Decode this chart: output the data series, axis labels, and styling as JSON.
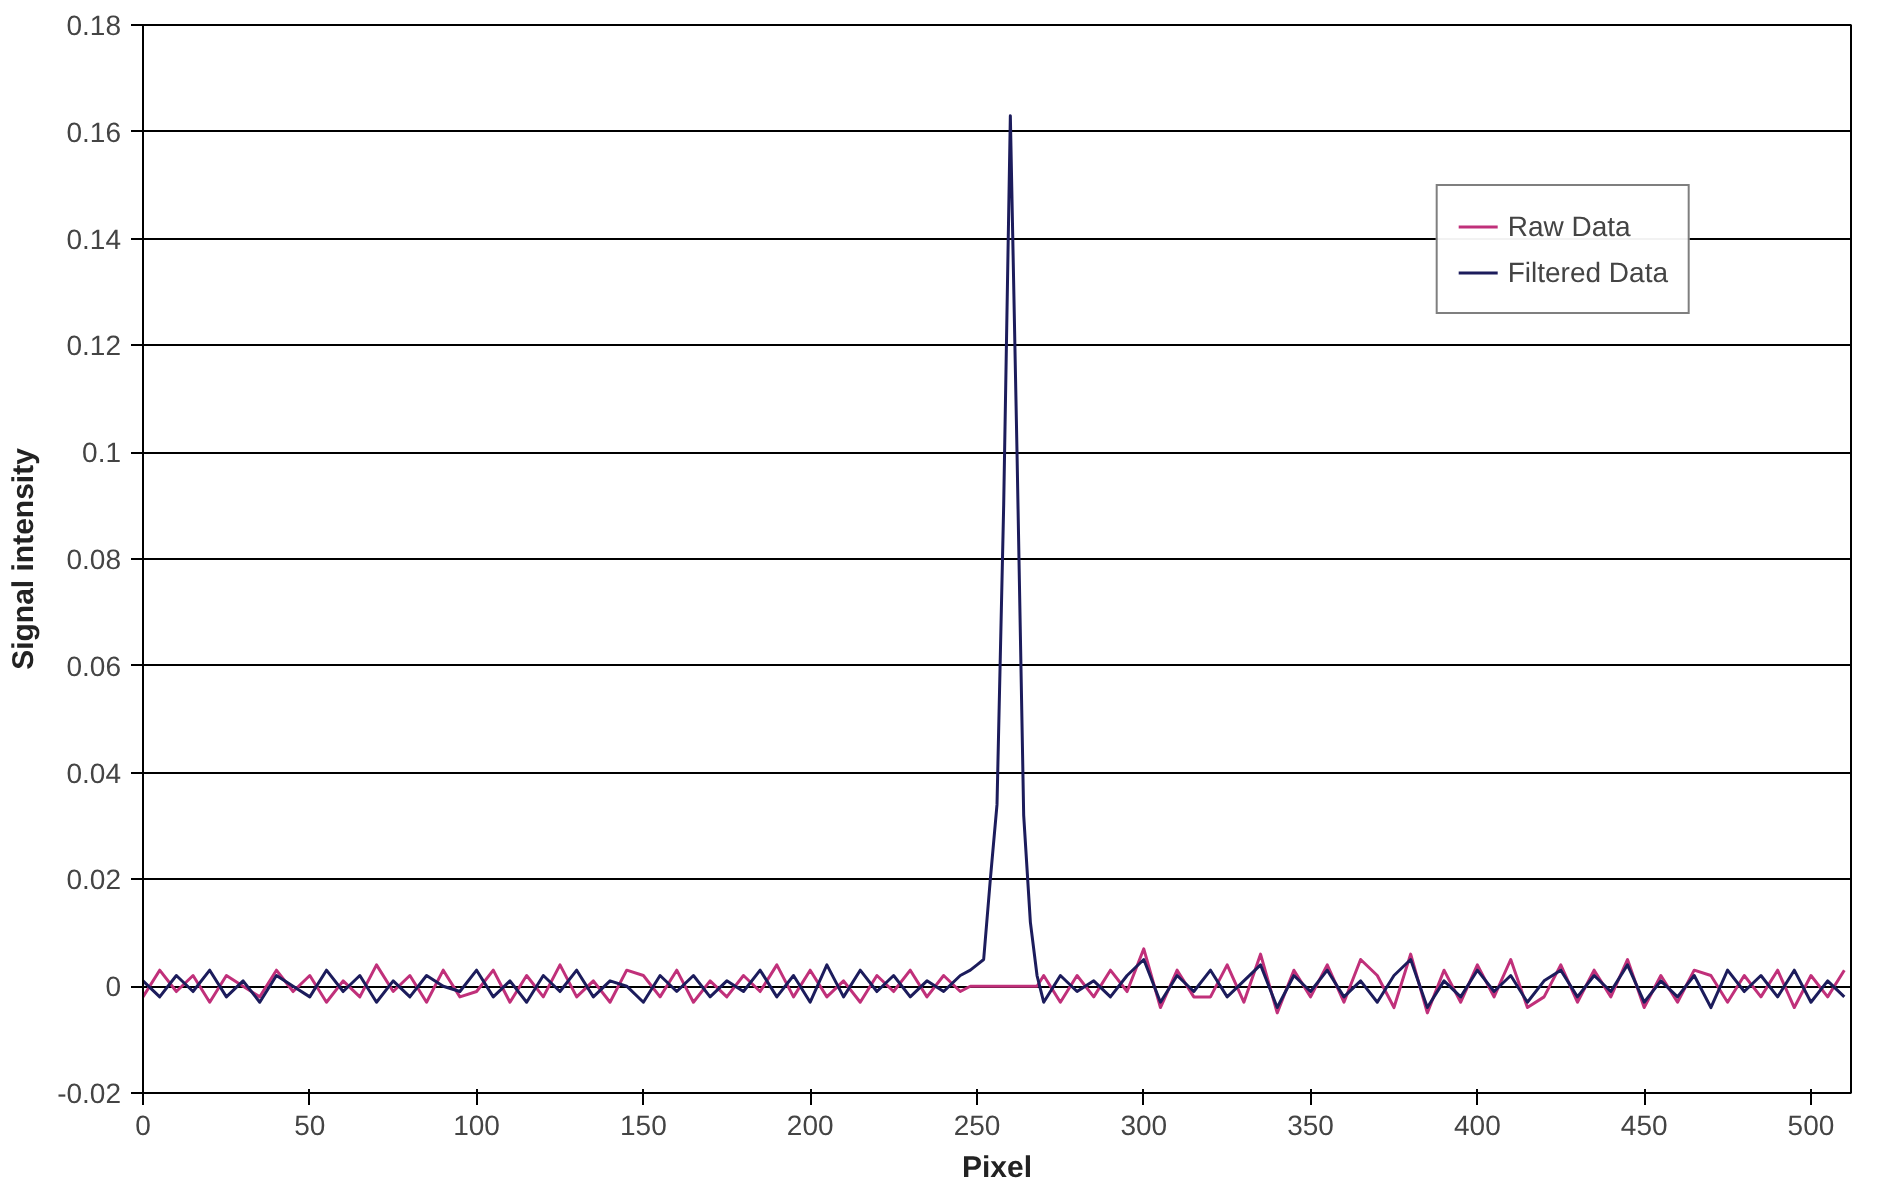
{
  "chart_data": {
    "type": "line",
    "xlabel": "Pixel",
    "ylabel": "Signal intensity",
    "x": [
      0,
      5,
      10,
      15,
      20,
      25,
      30,
      35,
      40,
      45,
      50,
      55,
      60,
      65,
      70,
      75,
      80,
      85,
      90,
      95,
      100,
      105,
      110,
      115,
      120,
      125,
      130,
      135,
      140,
      145,
      150,
      155,
      160,
      165,
      170,
      175,
      180,
      185,
      190,
      195,
      200,
      205,
      210,
      215,
      220,
      225,
      230,
      235,
      240,
      245,
      248,
      250,
      252,
      254,
      256,
      258,
      260,
      262,
      264,
      266,
      268,
      270,
      275,
      280,
      285,
      290,
      295,
      300,
      305,
      310,
      315,
      320,
      325,
      330,
      335,
      340,
      345,
      350,
      355,
      360,
      365,
      370,
      375,
      380,
      385,
      390,
      395,
      400,
      405,
      410,
      415,
      420,
      425,
      430,
      435,
      440,
      445,
      450,
      455,
      460,
      465,
      470,
      475,
      480,
      485,
      490,
      495,
      500,
      505,
      510
    ],
    "series": [
      {
        "name": "Raw Data",
        "color": "#c0307a",
        "values": [
          -0.002,
          0.003,
          -0.001,
          0.002,
          -0.003,
          0.002,
          0,
          -0.002,
          0.003,
          -0.001,
          0.002,
          -0.003,
          0.001,
          -0.002,
          0.004,
          -0.001,
          0.002,
          -0.003,
          0.003,
          -0.002,
          -0.001,
          0.003,
          -0.003,
          0.002,
          -0.002,
          0.004,
          -0.002,
          0.001,
          -0.003,
          0.003,
          0.002,
          -0.002,
          0.003,
          -0.003,
          0.001,
          -0.002,
          0.002,
          -0.001,
          0.004,
          -0.002,
          0.003,
          -0.002,
          0.001,
          -0.003,
          0.002,
          -0.001,
          0.003,
          -0.002,
          0.002,
          -0.001,
          0,
          0,
          0,
          0,
          0,
          0,
          0,
          0,
          0,
          0,
          0,
          0.002,
          -0.003,
          0.002,
          -0.002,
          0.003,
          -0.001,
          0.007,
          -0.004,
          0.003,
          -0.002,
          -0.002,
          0.004,
          -0.003,
          0.006,
          -0.005,
          0.003,
          -0.002,
          0.004,
          -0.003,
          0.005,
          0.002,
          -0.004,
          0.006,
          -0.005,
          0.003,
          -0.003,
          0.004,
          -0.002,
          0.005,
          -0.004,
          -0.002,
          0.004,
          -0.003,
          0.003,
          -0.002,
          0.005,
          -0.004,
          0.002,
          -0.003,
          0.003,
          0.002,
          -0.003,
          0.002,
          -0.002,
          0.003,
          -0.004,
          0.002,
          -0.002,
          0.003
        ]
      },
      {
        "name": "Filtered Data",
        "color": "#1c1c5c",
        "values": [
          0.001,
          -0.002,
          0.002,
          -0.001,
          0.003,
          -0.002,
          0.001,
          -0.003,
          0.002,
          0,
          -0.002,
          0.003,
          -0.001,
          0.002,
          -0.003,
          0.001,
          -0.002,
          0.002,
          0,
          -0.001,
          0.003,
          -0.002,
          0.001,
          -0.003,
          0.002,
          -0.001,
          0.003,
          -0.002,
          0.001,
          0,
          -0.003,
          0.002,
          -0.001,
          0.002,
          -0.002,
          0.001,
          -0.001,
          0.003,
          -0.002,
          0.002,
          -0.003,
          0.004,
          -0.002,
          0.003,
          -0.001,
          0.002,
          -0.002,
          0.001,
          -0.001,
          0.002,
          0.003,
          0.004,
          0.005,
          0.02,
          0.034,
          0.09,
          0.163,
          0.1,
          0.032,
          0.012,
          0.002,
          -0.003,
          0.002,
          -0.001,
          0.001,
          -0.002,
          0.002,
          0.005,
          -0.003,
          0.002,
          -0.001,
          0.003,
          -0.002,
          0.001,
          0.004,
          -0.004,
          0.002,
          -0.001,
          0.003,
          -0.002,
          0.001,
          -0.003,
          0.002,
          0.005,
          -0.004,
          0.001,
          -0.002,
          0.003,
          -0.001,
          0.002,
          -0.003,
          0.001,
          0.003,
          -0.002,
          0.002,
          -0.001,
          0.004,
          -0.003,
          0.001,
          -0.002,
          0.002,
          -0.004,
          0.003,
          -0.001,
          0.002,
          -0.002,
          0.003,
          -0.003,
          0.001,
          -0.002
        ]
      }
    ],
    "xlim": [
      0,
      512
    ],
    "xticks": [
      0,
      50,
      100,
      150,
      200,
      250,
      300,
      350,
      400,
      450,
      500
    ],
    "ylim": [
      -0.02,
      0.18
    ],
    "yticks": [
      -0.02,
      0,
      0.02,
      0.04,
      0.06,
      0.08,
      0.1,
      0.12,
      0.14,
      0.16,
      0.18
    ],
    "grid": "y",
    "legend": "top right",
    "line_style": "solid"
  }
}
